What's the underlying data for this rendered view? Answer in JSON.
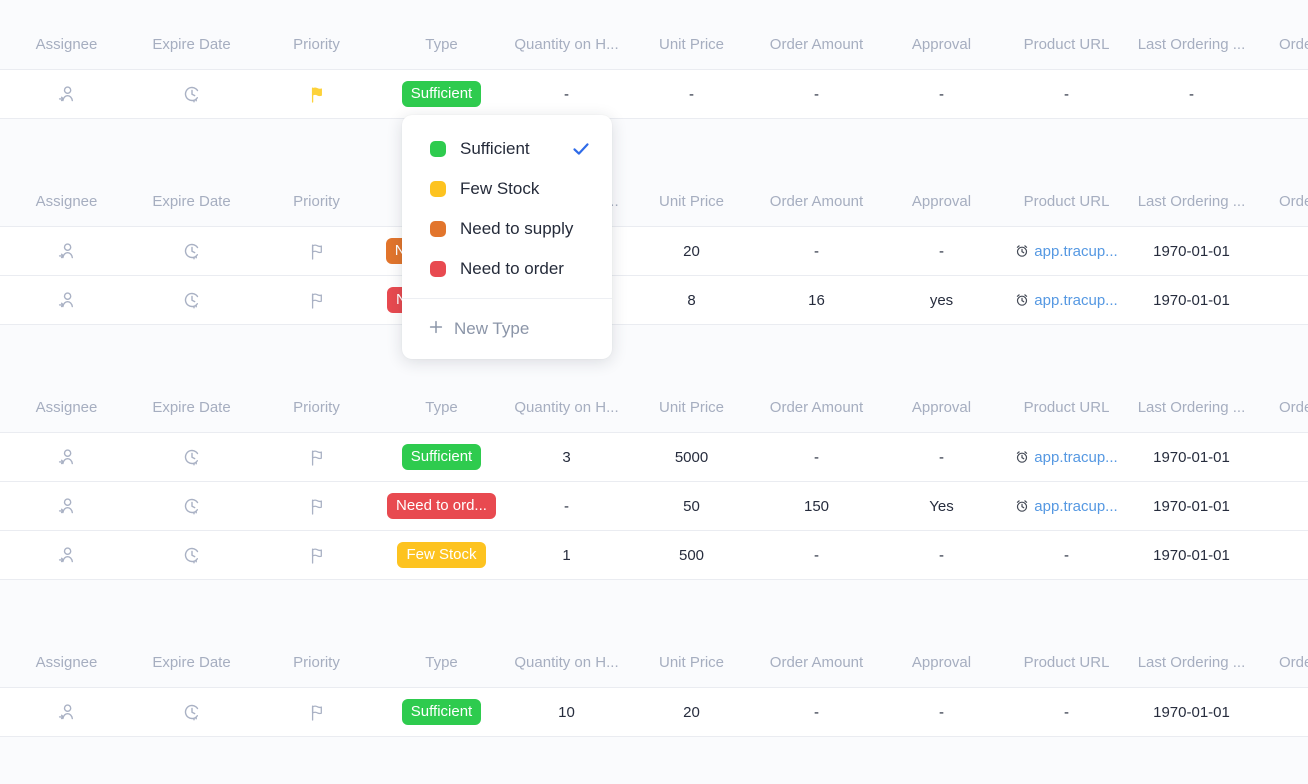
{
  "palette": {
    "green": "#2ecb4e",
    "yellow": "#fdc320",
    "orange": "#e2752c",
    "red": "#e84a50",
    "link_blue": "#5598e2",
    "check_blue": "#2f6be8",
    "flag_yellow": "#fdd23a",
    "header_text": "#a6aec0",
    "cell_text": "#262c3d"
  },
  "columns": [
    "Assignee",
    "Expire Date",
    "Priority",
    "Type",
    "Quantity on H...",
    "Unit Price",
    "Order Amount",
    "Approval",
    "Product URL",
    "Last Ordering ...",
    "Ordering ..."
  ],
  "sections": [
    {
      "rows": [
        {
          "priority_filled": true,
          "type": {
            "label": "Sufficient",
            "color": "green"
          },
          "quantity": "-",
          "unit_price": "-",
          "order_amount": "-",
          "approval": "-",
          "product_url": "-",
          "product_url_is_link": false,
          "last_ordering": "-",
          "ordering": ""
        }
      ]
    },
    {
      "rows": [
        {
          "priority_filled": false,
          "type": {
            "label": "Need to sup...",
            "color": "orange"
          },
          "quantity": "",
          "unit_price": "20",
          "order_amount": "-",
          "approval": "-",
          "product_url": "app.tracup...",
          "product_url_is_link": true,
          "last_ordering": "1970-01-01",
          "ordering": ""
        },
        {
          "priority_filled": false,
          "type": {
            "label": "Need to ord...",
            "color": "red"
          },
          "quantity": "",
          "unit_price": "8",
          "order_amount": "16",
          "approval": "yes",
          "product_url": "app.tracup...",
          "product_url_is_link": true,
          "last_ordering": "1970-01-01",
          "ordering": ""
        }
      ]
    },
    {
      "rows": [
        {
          "priority_filled": false,
          "type": {
            "label": "Sufficient",
            "color": "green"
          },
          "quantity": "3",
          "unit_price": "5000",
          "order_amount": "-",
          "approval": "-",
          "product_url": "app.tracup...",
          "product_url_is_link": true,
          "last_ordering": "1970-01-01",
          "ordering": ""
        },
        {
          "priority_filled": false,
          "type": {
            "label": "Need to ord...",
            "color": "red"
          },
          "quantity": "-",
          "unit_price": "50",
          "order_amount": "150",
          "approval": "Yes",
          "product_url": "app.tracup...",
          "product_url_is_link": true,
          "last_ordering": "1970-01-01",
          "ordering": ""
        },
        {
          "priority_filled": false,
          "type": {
            "label": "Few Stock",
            "color": "yellow"
          },
          "quantity": "1",
          "unit_price": "500",
          "order_amount": "-",
          "approval": "-",
          "product_url": "-",
          "product_url_is_link": false,
          "last_ordering": "1970-01-01",
          "ordering": ""
        }
      ]
    },
    {
      "rows": [
        {
          "priority_filled": false,
          "type": {
            "label": "Sufficient",
            "color": "green"
          },
          "quantity": "10",
          "unit_price": "20",
          "order_amount": "-",
          "approval": "-",
          "product_url": "-",
          "product_url_is_link": false,
          "last_ordering": "1970-01-01",
          "ordering": ""
        }
      ]
    }
  ],
  "dropdown": {
    "options": [
      {
        "label": "Sufficient",
        "color": "green",
        "checked": true
      },
      {
        "label": "Few Stock",
        "color": "yellow",
        "checked": false
      },
      {
        "label": "Need to supply",
        "color": "orange",
        "checked": false
      },
      {
        "label": "Need to order",
        "color": "red",
        "checked": false
      }
    ],
    "new_type_label": "New Type"
  }
}
